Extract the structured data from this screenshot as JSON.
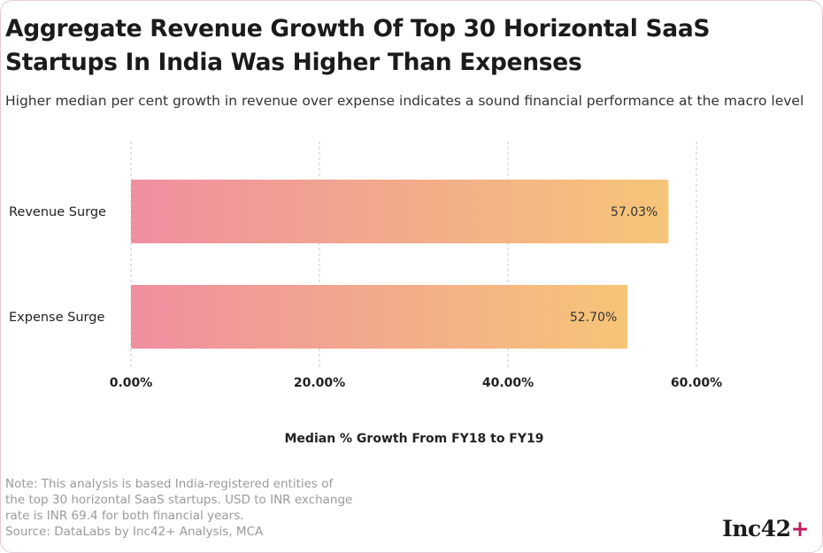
{
  "title": "Aggregate Revenue Growth Of Top 30 Horizontal SaaS Startups In India Was Higher Than Expenses",
  "subtitle": "Higher median per cent growth in revenue over expense indicates a sound financial performance at the macro level",
  "note_lines": [
    "Note: This analysis is based India-registered entities of",
    "the top 30 horizontal SaaS startups. USD to INR exchange",
    "rate is INR 69.4 for both financial years.",
    "Source: DataLabs by Inc42+ Analysis, MCA"
  ],
  "logo": {
    "text": "Inc42",
    "suffix": "+"
  },
  "colors": {
    "bar_start": "#ef8fa0",
    "bar_end": "#f6c577",
    "grid": "#c8c8c8",
    "logo_accent": "#c2185b"
  },
  "chart_data": {
    "type": "bar",
    "orientation": "horizontal",
    "categories": [
      "Revenue Surge",
      "Expense Surge"
    ],
    "values": [
      57.03,
      52.7
    ],
    "value_labels": [
      "57.03%",
      "52.70%"
    ],
    "xlabel": "Median % Growth From FY18 to FY19",
    "xlim": [
      0,
      60
    ],
    "xticks": [
      0,
      20,
      40,
      60
    ],
    "xtick_labels": [
      "0.00%",
      "20.00%",
      "40.00%",
      "60.00%"
    ],
    "grid": "vertical dashed"
  }
}
